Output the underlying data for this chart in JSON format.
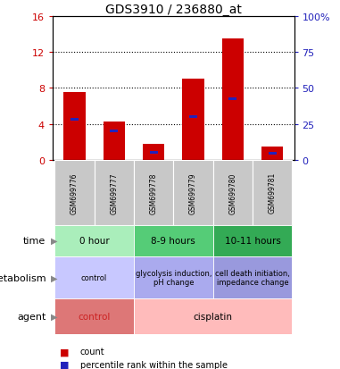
{
  "title": "GDS3910 / 236880_at",
  "samples": [
    "GSM699776",
    "GSM699777",
    "GSM699778",
    "GSM699779",
    "GSM699780",
    "GSM699781"
  ],
  "count_values": [
    7.5,
    4.3,
    1.8,
    9.0,
    13.5,
    1.5
  ],
  "percentile_values": [
    28.0,
    20.0,
    5.5,
    30.0,
    42.5,
    4.5
  ],
  "left_ylim": [
    0,
    16
  ],
  "right_ylim": [
    0,
    100
  ],
  "left_yticks": [
    0,
    4,
    8,
    12,
    16
  ],
  "right_yticks": [
    0,
    25,
    50,
    75,
    100
  ],
  "bar_color": "#cc0000",
  "percentile_color": "#2222bb",
  "sample_bg": "#c8c8c8",
  "time_groups": [
    {
      "label": "0 hour",
      "start": 0,
      "end": 2,
      "color": "#aaeebb"
    },
    {
      "label": "8-9 hours",
      "start": 2,
      "end": 4,
      "color": "#55cc77"
    },
    {
      "label": "10-11 hours",
      "start": 4,
      "end": 6,
      "color": "#33aa55"
    }
  ],
  "metabolism_groups": [
    {
      "label": "control",
      "start": 0,
      "end": 2,
      "color": "#c8c8ff"
    },
    {
      "label": "glycolysis induction,\npH change",
      "start": 2,
      "end": 4,
      "color": "#aaaaee"
    },
    {
      "label": "cell death initiation,\nimpedance change",
      "start": 4,
      "end": 6,
      "color": "#9999dd"
    }
  ],
  "agent_groups": [
    {
      "label": "control",
      "start": 0,
      "end": 2,
      "color": "#dd7777"
    },
    {
      "label": "cisplatin",
      "start": 2,
      "end": 6,
      "color": "#ffbbbb"
    }
  ],
  "agent_text_colors": [
    "#cc2222",
    "#000000"
  ],
  "row_labels": [
    "time",
    "metabolism",
    "agent"
  ],
  "left_axis_color": "#cc0000",
  "right_axis_color": "#2222bb",
  "grid_dotted_vals": [
    4,
    8,
    12
  ]
}
